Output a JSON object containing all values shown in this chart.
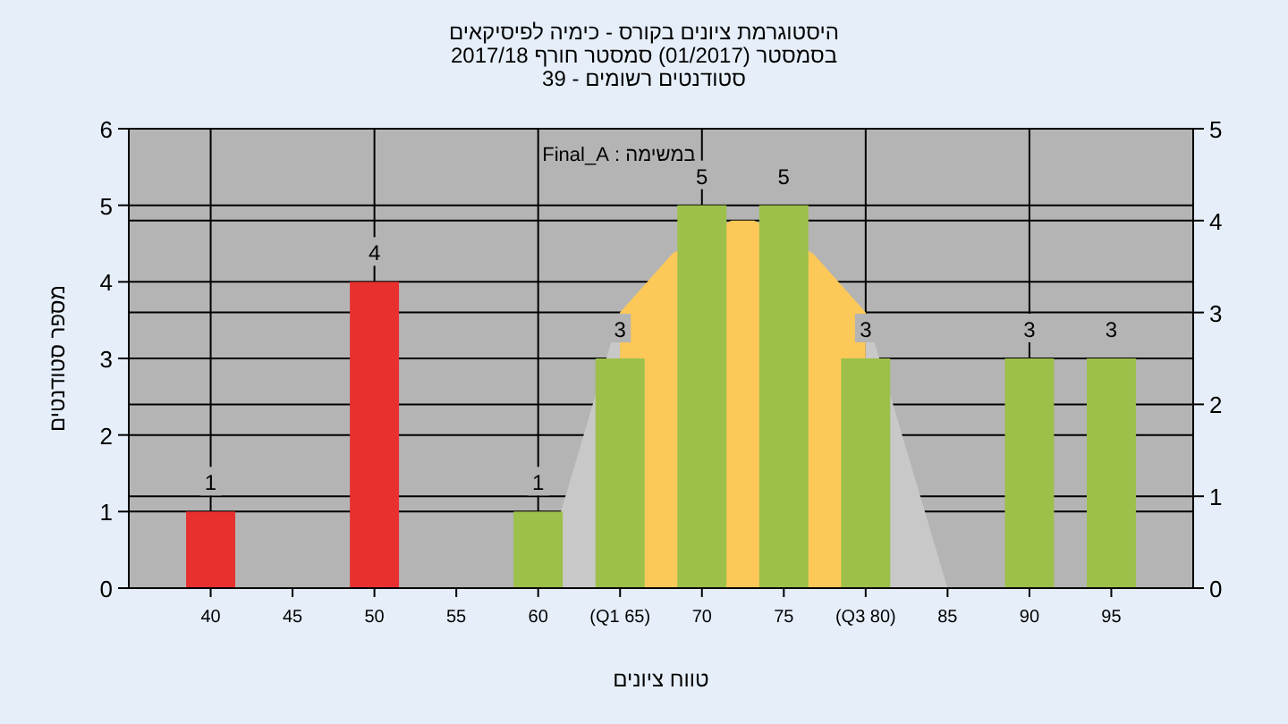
{
  "chart_data": {
    "type": "bar",
    "title": "היסטוגרמת ציונים בקורס - כימיה לפיסיקאים",
    "subtitle": "בסמסטר (01/2017) סמסטר חורף 2017/18",
    "annotations": [
      "סטודנטים רשומים - 39",
      "במשימה : Final_A"
    ],
    "xlabel": "טווח ציונים",
    "ylabel": "מספר סטודנטים",
    "x": [
      40,
      50,
      60,
      65,
      70,
      75,
      80,
      90,
      95
    ],
    "xlim": [
      35,
      100
    ],
    "xticks": [
      40,
      45,
      50,
      55,
      60,
      {
        "value": 65,
        "label": "(Q1 65)"
      },
      70,
      75,
      {
        "value": 80,
        "label": "(Q3 80)"
      },
      85,
      90,
      95
    ],
    "ylim": [
      0,
      6
    ],
    "yticks": [
      0,
      1,
      2,
      3,
      4,
      5,
      6
    ],
    "y2lim": [
      0,
      5
    ],
    "y2ticks": [
      0,
      1,
      2,
      3,
      4,
      5
    ],
    "grid": true,
    "series": [
      {
        "type": "area",
        "axis": "y2",
        "color": "#c8c8c8",
        "x": [
          60,
          65
        ],
        "values": [
          0,
          3
        ]
      },
      {
        "type": "area",
        "axis": "y2",
        "color": "#fcc858",
        "x": [
          65,
          68.2,
          71.8,
          73.2,
          76.8,
          80
        ],
        "values": [
          3,
          3.64,
          4,
          4,
          3.64,
          3
        ]
      },
      {
        "type": "area",
        "axis": "y2",
        "color": "#c8c8c8",
        "x": [
          80,
          85
        ],
        "values": [
          3,
          0
        ]
      },
      {
        "type": "bar",
        "colors": [
          "#e8302f",
          "#e8302f",
          "#9cc04a",
          "#9cc04a",
          "#9cc04a",
          "#9cc04a",
          "#9cc04a",
          "#9cc04a",
          "#9cc04a"
        ],
        "values": [
          1,
          4,
          1,
          3,
          5,
          5,
          3,
          3,
          3
        ],
        "value_labels": [
          "1",
          "4",
          "1",
          "3",
          "5",
          "5",
          "3",
          "3",
          "3"
        ]
      }
    ]
  }
}
